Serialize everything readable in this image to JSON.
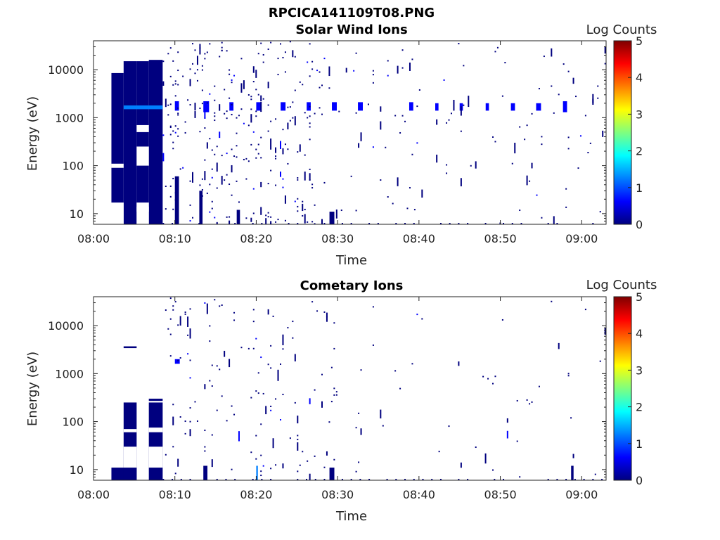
{
  "figure_title": "RPCICA141109T08.PNG",
  "colormap": [
    "#00007f",
    "#0000ff",
    "#007fff",
    "#00ffff",
    "#7fff7f",
    "#ffff00",
    "#ff7f00",
    "#ff0000",
    "#7f0000"
  ],
  "chart_data": [
    {
      "type": "heatmap",
      "title": "Solar Wind Ions",
      "xlabel": "Time",
      "ylabel": "Energy (eV)",
      "x_tick_labels": [
        "08:00",
        "08:10",
        "08:20",
        "08:30",
        "08:40",
        "08:50",
        "09:00"
      ],
      "x_tick_minutes": [
        0,
        10,
        20,
        30,
        40,
        50,
        60
      ],
      "xlim_minutes": [
        0,
        63
      ],
      "y_scale": "log",
      "y_tick_labels": [
        "10",
        "100",
        "1000",
        "10000"
      ],
      "y_tick_values": [
        10,
        100,
        1000,
        10000
      ],
      "ylim": [
        6,
        40000
      ],
      "colorbar": {
        "label": "Log Counts",
        "range": [
          0,
          5
        ],
        "tick_labels": [
          "0",
          "1",
          "2",
          "3",
          "4",
          "5"
        ]
      },
      "blocks": [
        {
          "t0": 2.2,
          "t1": 3.7,
          "e0": 17,
          "e1": 8500,
          "v": 0
        },
        {
          "t0": 3.7,
          "t1": 5.3,
          "e0": 6,
          "e1": 15000,
          "v": 0
        },
        {
          "t0": 5.3,
          "t1": 6.8,
          "e0": 17,
          "e1": 15000,
          "v": 0
        },
        {
          "t0": 6.8,
          "t1": 8.5,
          "e0": 6,
          "e1": 16000,
          "v": 0
        },
        {
          "t0": 3.7,
          "t1": 8.5,
          "e0": 1500,
          "e1": 1800,
          "v": 1
        },
        {
          "t0": 10.0,
          "t1": 10.5,
          "e0": 1400,
          "e1": 2200,
          "v": 0.8
        },
        {
          "t0": 13.5,
          "t1": 14.2,
          "e0": 1300,
          "e1": 2200,
          "v": 0.8
        },
        {
          "t0": 16.7,
          "t1": 17.2,
          "e0": 1400,
          "e1": 2100,
          "v": 0.7
        },
        {
          "t0": 20.0,
          "t1": 20.6,
          "e0": 1400,
          "e1": 2100,
          "v": 0.7
        },
        {
          "t0": 23.0,
          "t1": 23.6,
          "e0": 1400,
          "e1": 2100,
          "v": 0.6
        },
        {
          "t0": 26.2,
          "t1": 26.7,
          "e0": 1400,
          "e1": 2100,
          "v": 0.6
        },
        {
          "t0": 29.3,
          "t1": 29.9,
          "e0": 1400,
          "e1": 2100,
          "v": 0.5
        },
        {
          "t0": 32.5,
          "t1": 33.1,
          "e0": 1400,
          "e1": 2100,
          "v": 0.5
        },
        {
          "t0": 38.8,
          "t1": 39.3,
          "e0": 1400,
          "e1": 2100,
          "v": 0.6
        },
        {
          "t0": 42.0,
          "t1": 42.4,
          "e0": 1400,
          "e1": 2000,
          "v": 0.4
        },
        {
          "t0": 45.0,
          "t1": 45.4,
          "e0": 1400,
          "e1": 2000,
          "v": 0.4
        },
        {
          "t0": 48.2,
          "t1": 48.6,
          "e0": 1400,
          "e1": 2000,
          "v": 0.4
        },
        {
          "t0": 51.3,
          "t1": 51.8,
          "e0": 1400,
          "e1": 2000,
          "v": 0.4
        },
        {
          "t0": 54.4,
          "t1": 55.0,
          "e0": 1400,
          "e1": 2000,
          "v": 0.5
        },
        {
          "t0": 57.7,
          "t1": 58.2,
          "e0": 1300,
          "e1": 2200,
          "v": 0.6
        },
        {
          "t0": 10.0,
          "t1": 10.5,
          "e0": 6,
          "e1": 60,
          "v": 0
        },
        {
          "t0": 13.0,
          "t1": 13.4,
          "e0": 6,
          "e1": 30,
          "v": 0
        },
        {
          "t0": 17.6,
          "t1": 18.0,
          "e0": 6,
          "e1": 12,
          "v": 0
        },
        {
          "t0": 29.0,
          "t1": 29.6,
          "e0": 6,
          "e1": 11,
          "v": 0
        }
      ],
      "bands_ev": [],
      "masks": [
        {
          "t0": 5.3,
          "t1": 6.8,
          "e0": 6,
          "e1": 17,
          "v": -1
        },
        {
          "t0": 2.2,
          "t1": 3.7,
          "e0": 6,
          "e1": 17,
          "v": -1
        },
        {
          "t0": 5.3,
          "t1": 6.8,
          "e0": 100,
          "e1": 250,
          "v": -1
        },
        {
          "t0": 5.3,
          "t1": 6.8,
          "e0": 500,
          "e1": 700,
          "v": -1
        },
        {
          "t0": 5.3,
          "t1": 6.8,
          "e0": 11,
          "e1": 14,
          "v": -1
        },
        {
          "t0": 2.2,
          "t1": 3.7,
          "e0": 90,
          "e1": 110,
          "v": -1
        }
      ],
      "scatter": {
        "t_start": 8.5,
        "t_end": 63,
        "density_early": 0.55,
        "density_late": 0.12,
        "decay_at_minute": 28,
        "seed": 11
      }
    },
    {
      "type": "heatmap",
      "title": "Cometary Ions",
      "xlabel": "Time",
      "ylabel": "Energy (eV)",
      "x_tick_labels": [
        "08:00",
        "08:10",
        "08:20",
        "08:30",
        "08:40",
        "08:50",
        "09:00"
      ],
      "x_tick_minutes": [
        0,
        10,
        20,
        30,
        40,
        50,
        60
      ],
      "xlim_minutes": [
        0,
        63
      ],
      "y_scale": "log",
      "y_tick_labels": [
        "10",
        "100",
        "1000",
        "10000"
      ],
      "y_tick_values": [
        10,
        100,
        1000,
        10000
      ],
      "ylim": [
        6,
        40000
      ],
      "colorbar": {
        "label": "Log Counts",
        "range": [
          0,
          5
        ],
        "tick_labels": [
          "0",
          "1",
          "2",
          "3",
          "4",
          "5"
        ]
      },
      "blocks": [
        {
          "t0": 2.2,
          "t1": 5.3,
          "e0": 6,
          "e1": 11,
          "v": 0
        },
        {
          "t0": 3.7,
          "t1": 5.3,
          "e0": 6,
          "e1": 250,
          "v": 0
        },
        {
          "t0": 6.8,
          "t1": 8.5,
          "e0": 6,
          "e1": 250,
          "v": 0
        },
        {
          "t0": 3.7,
          "t1": 5.3,
          "e0": 3400,
          "e1": 3700,
          "v": 0
        },
        {
          "t0": 6.8,
          "t1": 8.5,
          "e0": 270,
          "e1": 300,
          "v": 0
        },
        {
          "t0": 10.0,
          "t1": 10.6,
          "e0": 1600,
          "e1": 2000,
          "v": 0.4
        },
        {
          "t0": 13.5,
          "t1": 14.0,
          "e0": 6,
          "e1": 12,
          "v": 0
        },
        {
          "t0": 20.0,
          "t1": 20.2,
          "e0": 6,
          "e1": 12,
          "v": 1
        },
        {
          "t0": 29.0,
          "t1": 29.6,
          "e0": 6,
          "e1": 11,
          "v": 0
        },
        {
          "t0": 58.7,
          "t1": 59.0,
          "e0": 6,
          "e1": 12,
          "v": 0
        }
      ],
      "bands_ev": [],
      "masks": [
        {
          "t0": 3.7,
          "t1": 5.3,
          "e0": 11,
          "e1": 30,
          "v": -1
        },
        {
          "t0": 6.8,
          "t1": 8.5,
          "e0": 11,
          "e1": 30,
          "v": -1
        },
        {
          "t0": 3.7,
          "t1": 5.3,
          "e0": 60,
          "e1": 70,
          "v": -1
        },
        {
          "t0": 6.8,
          "t1": 8.5,
          "e0": 60,
          "e1": 75,
          "v": -1
        }
      ],
      "scatter": {
        "t_start": 8.5,
        "t_end": 63,
        "density_early": 0.22,
        "density_late": 0.05,
        "decay_at_minute": 30,
        "seed": 23
      }
    }
  ]
}
